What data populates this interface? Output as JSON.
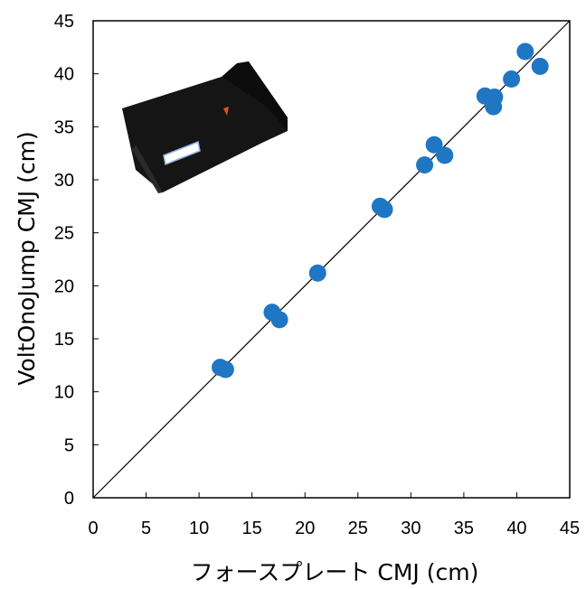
{
  "chart_data": {
    "type": "scatter",
    "xlabel": "フォースプレート CMJ (cm)",
    "ylabel": "VoltOnoJump CMJ (cm)",
    "xlim": [
      0,
      45
    ],
    "ylim": [
      0,
      45
    ],
    "x_ticks": [
      0,
      5,
      10,
      15,
      20,
      25,
      30,
      35,
      40,
      45
    ],
    "y_ticks": [
      0,
      5,
      10,
      15,
      20,
      25,
      30,
      35,
      40,
      45
    ],
    "grid": false,
    "legend": "none",
    "identity_line": true,
    "marker_color": "#1f77c4",
    "inset_image": "device-photo",
    "points": [
      {
        "x": 12.0,
        "y": 12.3
      },
      {
        "x": 12.5,
        "y": 12.1
      },
      {
        "x": 16.9,
        "y": 17.5
      },
      {
        "x": 17.6,
        "y": 16.8
      },
      {
        "x": 21.2,
        "y": 21.2
      },
      {
        "x": 27.1,
        "y": 27.5
      },
      {
        "x": 27.5,
        "y": 27.2
      },
      {
        "x": 31.3,
        "y": 31.4
      },
      {
        "x": 32.2,
        "y": 33.3
      },
      {
        "x": 33.2,
        "y": 32.3
      },
      {
        "x": 37.0,
        "y": 37.9
      },
      {
        "x": 37.8,
        "y": 36.9
      },
      {
        "x": 37.9,
        "y": 37.8
      },
      {
        "x": 39.5,
        "y": 39.5
      },
      {
        "x": 40.8,
        "y": 42.1
      },
      {
        "x": 42.2,
        "y": 40.7
      }
    ]
  }
}
